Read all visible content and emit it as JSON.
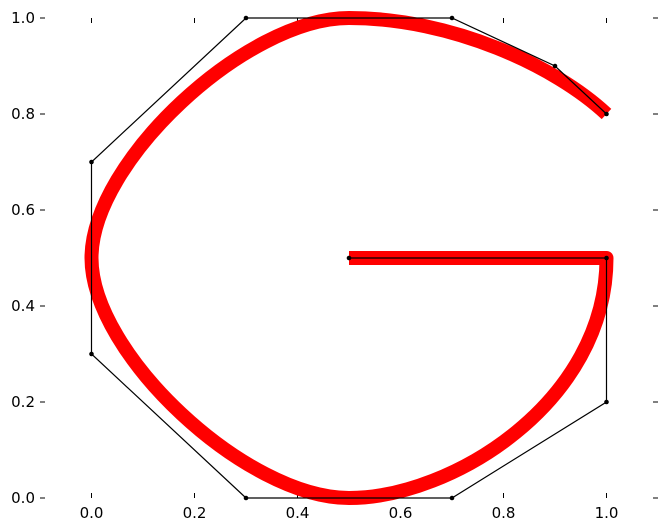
{
  "chart_data": {
    "type": "line",
    "title": "",
    "xlabel": "",
    "ylabel": "",
    "xlim": [
      -0.1,
      1.1
    ],
    "ylim": [
      0.0,
      1.0
    ],
    "x_ticks": [
      0.0,
      0.2,
      0.4,
      0.6,
      0.8,
      1.0
    ],
    "y_ticks": [
      0.0,
      0.2,
      0.4,
      0.6,
      0.8,
      1.0
    ],
    "x_tick_labels": [
      "0.0",
      "0.2",
      "0.4",
      "0.6",
      "0.8",
      "1.0"
    ],
    "y_tick_labels": [
      "0.0",
      "0.2",
      "0.4",
      "0.6",
      "0.8",
      "1.0"
    ],
    "grid": false,
    "legend": "none",
    "series": [
      {
        "kind": "spline-curve",
        "color": "#ff0000",
        "segments": [
          {
            "type": "cubic",
            "p0": [
              1.0,
              0.8
            ],
            "c1": [
              0.9,
              0.9
            ],
            "c2": [
              0.7,
              1.0
            ],
            "p1": [
              0.5,
              1.0
            ]
          },
          {
            "type": "cubic",
            "p0": [
              0.5,
              1.0
            ],
            "c1": [
              0.3,
              1.0
            ],
            "c2": [
              0.0,
              0.7
            ],
            "p1": [
              0.0,
              0.5
            ]
          },
          {
            "type": "cubic",
            "p0": [
              0.0,
              0.5
            ],
            "c1": [
              0.0,
              0.3
            ],
            "c2": [
              0.3,
              0.0
            ],
            "p1": [
              0.5,
              0.0
            ]
          },
          {
            "type": "cubic",
            "p0": [
              0.5,
              0.0
            ],
            "c1": [
              0.7,
              0.0
            ],
            "c2": [
              1.0,
              0.2
            ],
            "p1": [
              1.0,
              0.5
            ]
          },
          {
            "type": "line",
            "p0": [
              1.0,
              0.5
            ],
            "p1": [
              0.5,
              0.5
            ]
          }
        ]
      },
      {
        "kind": "control-polygon",
        "color": "#000000",
        "x": [
          1.0,
          0.9,
          0.7,
          0.3,
          0.0,
          0.0,
          0.3,
          0.7,
          1.0,
          1.0,
          0.5
        ],
        "y": [
          0.8,
          0.9,
          1.0,
          1.0,
          0.7,
          0.3,
          0.0,
          0.0,
          0.2,
          0.5,
          0.5
        ]
      }
    ]
  }
}
